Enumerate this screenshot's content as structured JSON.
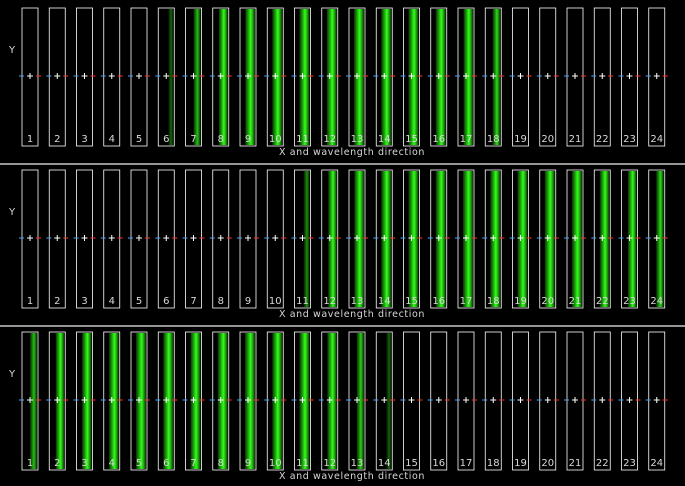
{
  "colors": {
    "background": "#000000",
    "panel_divider": "#c8c8c8",
    "slit_outline": "#ffffff",
    "spectrum_green": "#22ff11",
    "marker_center": "#ffffff",
    "marker_left": "#4aa0ff",
    "marker_right": "#ff3030",
    "text": "#d8d8d8"
  },
  "panels": [
    {
      "y_axis_label": "Y",
      "x_axis_label": "X and wavelength direction",
      "slits": [
        {
          "label": "1",
          "illumination": 0.0
        },
        {
          "label": "2",
          "illumination": 0.0
        },
        {
          "label": "3",
          "illumination": 0.0
        },
        {
          "label": "4",
          "illumination": 0.0
        },
        {
          "label": "5",
          "illumination": 0.0
        },
        {
          "label": "6",
          "illumination": 0.15
        },
        {
          "label": "7",
          "illumination": 0.5
        },
        {
          "label": "8",
          "illumination": 0.8
        },
        {
          "label": "9",
          "illumination": 0.95
        },
        {
          "label": "10",
          "illumination": 1.0
        },
        {
          "label": "11",
          "illumination": 1.0
        },
        {
          "label": "12",
          "illumination": 1.0
        },
        {
          "label": "13",
          "illumination": 1.0
        },
        {
          "label": "14",
          "illumination": 1.0
        },
        {
          "label": "15",
          "illumination": 1.0
        },
        {
          "label": "16",
          "illumination": 1.0
        },
        {
          "label": "17",
          "illumination": 0.9
        },
        {
          "label": "18",
          "illumination": 0.6
        },
        {
          "label": "19",
          "illumination": 0.0
        },
        {
          "label": "20",
          "illumination": 0.0
        },
        {
          "label": "21",
          "illumination": 0.0
        },
        {
          "label": "22",
          "illumination": 0.0
        },
        {
          "label": "23",
          "illumination": 0.0
        },
        {
          "label": "24",
          "illumination": 0.0
        }
      ]
    },
    {
      "y_axis_label": "Y",
      "x_axis_label": "X and wavelength direction",
      "slits": [
        {
          "label": "1",
          "illumination": 0.0
        },
        {
          "label": "2",
          "illumination": 0.0
        },
        {
          "label": "3",
          "illumination": 0.0
        },
        {
          "label": "4",
          "illumination": 0.0
        },
        {
          "label": "5",
          "illumination": 0.0
        },
        {
          "label": "6",
          "illumination": 0.0
        },
        {
          "label": "7",
          "illumination": 0.0
        },
        {
          "label": "8",
          "illumination": 0.0
        },
        {
          "label": "9",
          "illumination": 0.0
        },
        {
          "label": "10",
          "illumination": 0.0
        },
        {
          "label": "11",
          "illumination": 0.3
        },
        {
          "label": "12",
          "illumination": 0.75
        },
        {
          "label": "13",
          "illumination": 0.95
        },
        {
          "label": "14",
          "illumination": 1.0
        },
        {
          "label": "15",
          "illumination": 1.0
        },
        {
          "label": "16",
          "illumination": 1.0
        },
        {
          "label": "17",
          "illumination": 1.0
        },
        {
          "label": "18",
          "illumination": 1.0
        },
        {
          "label": "19",
          "illumination": 1.0
        },
        {
          "label": "20",
          "illumination": 1.0
        },
        {
          "label": "21",
          "illumination": 1.0
        },
        {
          "label": "22",
          "illumination": 0.9
        },
        {
          "label": "23",
          "illumination": 0.75
        },
        {
          "label": "24",
          "illumination": 0.6
        }
      ]
    },
    {
      "y_axis_label": "Y",
      "x_axis_label": "X and wavelength direction",
      "slits": [
        {
          "label": "1",
          "illumination": 0.5
        },
        {
          "label": "2",
          "illumination": 0.75
        },
        {
          "label": "3",
          "illumination": 0.9
        },
        {
          "label": "4",
          "illumination": 0.95
        },
        {
          "label": "5",
          "illumination": 1.0
        },
        {
          "label": "6",
          "illumination": 1.0
        },
        {
          "label": "7",
          "illumination": 1.0
        },
        {
          "label": "8",
          "illumination": 1.0
        },
        {
          "label": "9",
          "illumination": 1.0
        },
        {
          "label": "10",
          "illumination": 1.0
        },
        {
          "label": "11",
          "illumination": 1.0
        },
        {
          "label": "12",
          "illumination": 0.9
        },
        {
          "label": "13",
          "illumination": 0.55
        },
        {
          "label": "14",
          "illumination": 0.15
        },
        {
          "label": "15",
          "illumination": 0.0
        },
        {
          "label": "16",
          "illumination": 0.0
        },
        {
          "label": "17",
          "illumination": 0.0
        },
        {
          "label": "18",
          "illumination": 0.0
        },
        {
          "label": "19",
          "illumination": 0.0
        },
        {
          "label": "20",
          "illumination": 0.0
        },
        {
          "label": "21",
          "illumination": 0.0
        },
        {
          "label": "22",
          "illumination": 0.0
        },
        {
          "label": "23",
          "illumination": 0.0
        },
        {
          "label": "24",
          "illumination": 0.0
        }
      ]
    }
  ]
}
